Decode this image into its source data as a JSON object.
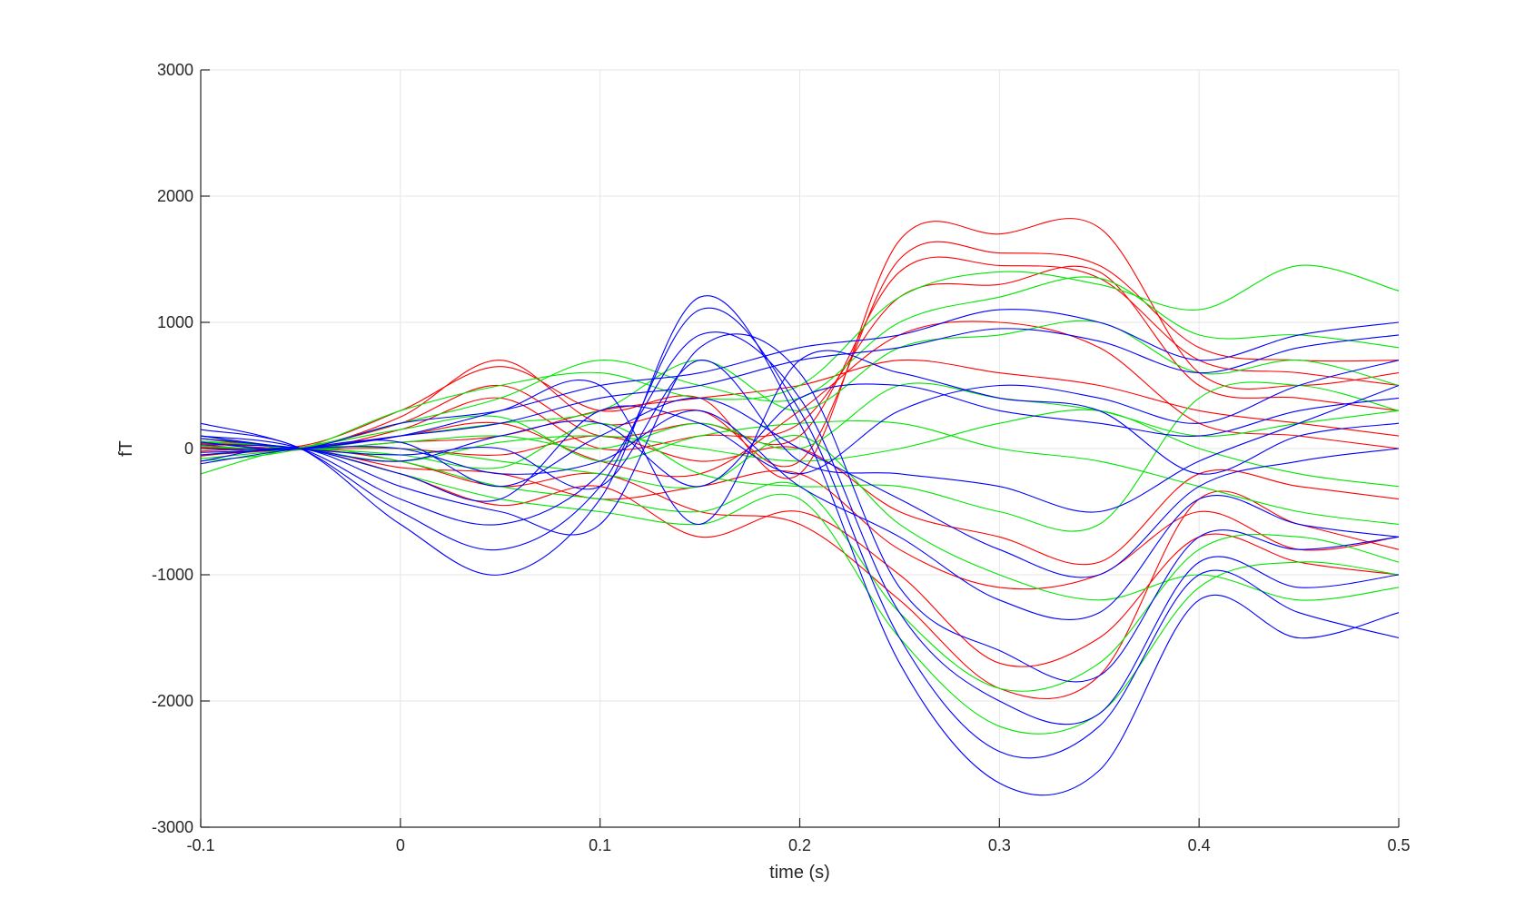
{
  "chart_data": {
    "type": "line",
    "xlabel": "time (s)",
    "ylabel": "fT",
    "xlim": [
      -0.1,
      0.5
    ],
    "ylim": [
      -3000,
      3000
    ],
    "x_ticks": [
      -0.1,
      0,
      0.1,
      0.2,
      0.3,
      0.4,
      0.5
    ],
    "x_tick_labels": [
      "-0.1",
      "0",
      "0.1",
      "0.2",
      "0.3",
      "0.4",
      "0.5"
    ],
    "y_ticks": [
      -3000,
      -2000,
      -1000,
      0,
      1000,
      2000,
      3000
    ],
    "y_tick_labels": [
      "-3000",
      "-2000",
      "-1000",
      "0",
      "1000",
      "2000",
      "3000"
    ],
    "grid": true,
    "legend": "none",
    "colors": {
      "red": "#ff0000",
      "green": "#00e600",
      "blue": "#0000ff"
    },
    "x": [
      -0.1,
      -0.05,
      0,
      0.05,
      0.1,
      0.15,
      0.2,
      0.25,
      0.3,
      0.35,
      0.4,
      0.45,
      0.5
    ],
    "series": [
      {
        "color": "red",
        "values": [
          50,
          20,
          300,
          650,
          300,
          400,
          -200,
          1650,
          1700,
          1750,
          600,
          500,
          600
        ]
      },
      {
        "color": "red",
        "values": [
          0,
          0,
          250,
          700,
          200,
          300,
          -100,
          1500,
          1550,
          1450,
          800,
          700,
          700
        ]
      },
      {
        "color": "red",
        "values": [
          -50,
          10,
          200,
          500,
          100,
          200,
          100,
          1400,
          1450,
          1350,
          700,
          600,
          500
        ]
      },
      {
        "color": "red",
        "values": [
          30,
          -10,
          150,
          400,
          0,
          100,
          200,
          1200,
          1300,
          1400,
          500,
          400,
          300
        ]
      },
      {
        "color": "red",
        "values": [
          -20,
          0,
          -100,
          -300,
          -200,
          -500,
          -600,
          -1200,
          -1900,
          -1800,
          -400,
          -600,
          -800
        ]
      },
      {
        "color": "red",
        "values": [
          40,
          0,
          -200,
          -450,
          -300,
          -700,
          -500,
          -1000,
          -1700,
          -1500,
          -700,
          -900,
          -1000
        ]
      },
      {
        "color": "red",
        "values": [
          0,
          10,
          100,
          200,
          -100,
          -200,
          300,
          900,
          1000,
          800,
          200,
          100,
          0
        ]
      },
      {
        "color": "red",
        "values": [
          -60,
          0,
          -150,
          -200,
          -400,
          -300,
          -200,
          -800,
          -1100,
          -1000,
          -500,
          -800,
          -700
        ]
      },
      {
        "color": "red",
        "values": [
          80,
          0,
          50,
          100,
          300,
          400,
          500,
          700,
          600,
          500,
          300,
          200,
          100
        ]
      },
      {
        "color": "red",
        "values": [
          10,
          -5,
          0,
          -50,
          100,
          -100,
          0,
          -500,
          -700,
          -900,
          -200,
          -300,
          -400
        ]
      },
      {
        "color": "green",
        "values": [
          -100,
          0,
          300,
          500,
          600,
          400,
          500,
          1200,
          1400,
          1300,
          1100,
          1450,
          1250
        ]
      },
      {
        "color": "green",
        "values": [
          0,
          10,
          200,
          400,
          700,
          500,
          400,
          1000,
          1200,
          1350,
          900,
          900,
          800
        ]
      },
      {
        "color": "green",
        "values": [
          50,
          0,
          -200,
          -400,
          -500,
          -600,
          -400,
          -1500,
          -2200,
          -2100,
          -1100,
          -900,
          -1000
        ]
      },
      {
        "color": "green",
        "values": [
          -200,
          0,
          -100,
          -300,
          -400,
          -500,
          -300,
          -1300,
          -1900,
          -1700,
          -800,
          -700,
          -900
        ]
      },
      {
        "color": "green",
        "values": [
          100,
          0,
          100,
          200,
          300,
          700,
          300,
          800,
          900,
          1000,
          600,
          700,
          500
        ]
      },
      {
        "color": "green",
        "values": [
          -50,
          10,
          0,
          -100,
          -200,
          -300,
          100,
          -600,
          -1000,
          -1200,
          -1000,
          -1200,
          -1100
        ]
      },
      {
        "color": "green",
        "values": [
          20,
          -10,
          50,
          100,
          0,
          200,
          0,
          500,
          400,
          300,
          100,
          200,
          300
        ]
      },
      {
        "color": "green",
        "values": [
          0,
          0,
          -50,
          -150,
          200,
          -200,
          -300,
          -300,
          -500,
          -600,
          400,
          500,
          300
        ]
      },
      {
        "color": "green",
        "values": [
          -80,
          5,
          150,
          250,
          -100,
          100,
          200,
          200,
          0,
          -100,
          -300,
          -500,
          -600
        ]
      },
      {
        "color": "green",
        "values": [
          60,
          0,
          -100,
          50,
          100,
          0,
          -100,
          0,
          200,
          300,
          0,
          -200,
          -300
        ]
      },
      {
        "color": "blue",
        "values": [
          200,
          0,
          -500,
          -800,
          -300,
          1100,
          300,
          -1500,
          -2400,
          -2200,
          -1000,
          -1300,
          -1500
        ]
      },
      {
        "color": "blue",
        "values": [
          150,
          0,
          -600,
          -1000,
          -400,
          1200,
          200,
          -1700,
          -2650,
          -2550,
          -1200,
          -1500,
          -1300
        ]
      },
      {
        "color": "blue",
        "values": [
          100,
          0,
          -400,
          -600,
          -200,
          900,
          400,
          -1300,
          -2000,
          -2100,
          -900,
          -1100,
          -1000
        ]
      },
      {
        "color": "blue",
        "values": [
          -100,
          0,
          -300,
          -500,
          -600,
          800,
          600,
          -1100,
          -1600,
          -1800,
          -700,
          -800,
          -700
        ]
      },
      {
        "color": "blue",
        "values": [
          50,
          0,
          200,
          300,
          500,
          600,
          800,
          900,
          1100,
          1000,
          700,
          900,
          1000
        ]
      },
      {
        "color": "blue",
        "values": [
          0,
          0,
          100,
          200,
          400,
          500,
          700,
          800,
          950,
          850,
          600,
          800,
          900
        ]
      },
      {
        "color": "blue",
        "values": [
          -50,
          0,
          0,
          -200,
          -100,
          300,
          -300,
          -700,
          -1200,
          -1300,
          -400,
          -600,
          -700
        ]
      },
      {
        "color": "blue",
        "values": [
          80,
          0,
          -100,
          100,
          200,
          -300,
          400,
          500,
          300,
          200,
          100,
          300,
          400
        ]
      },
      {
        "color": "blue",
        "values": [
          -120,
          0,
          50,
          -300,
          100,
          400,
          0,
          -400,
          -800,
          -1000,
          -300,
          -100,
          0
        ]
      },
      {
        "color": "blue",
        "values": [
          30,
          0,
          -200,
          -400,
          300,
          200,
          -200,
          300,
          500,
          400,
          200,
          500,
          700
        ]
      },
      {
        "color": "blue",
        "values": [
          -30,
          0,
          100,
          300,
          500,
          -600,
          700,
          600,
          400,
          300,
          -200,
          100,
          200
        ]
      },
      {
        "color": "blue",
        "values": [
          100,
          0,
          -50,
          0,
          -300,
          700,
          -100,
          -200,
          -300,
          -500,
          -100,
          200,
          500
        ]
      }
    ]
  }
}
